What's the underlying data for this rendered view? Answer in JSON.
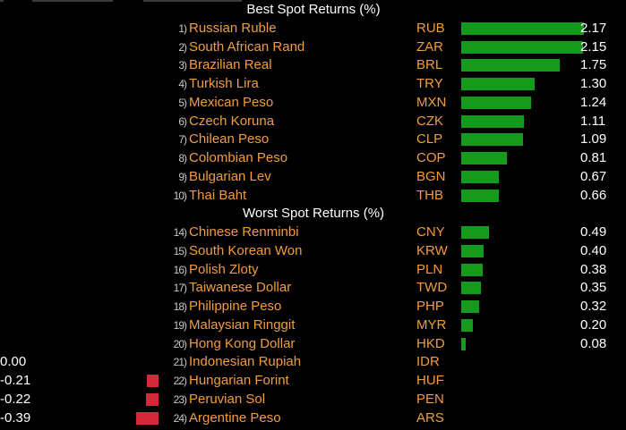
{
  "colors": {
    "background": "#000000",
    "name_text": "#f39c3c",
    "value_text": "#ffffff",
    "positive_bar": "#159a1c",
    "negative_bar": "#d4283b"
  },
  "chart_data": {
    "type": "bar",
    "orientation": "horizontal",
    "sections": [
      {
        "title": "Best Spot Returns (%)",
        "rows": [
          {
            "rank": "1)",
            "name": "Russian Ruble",
            "code": "RUB",
            "value": 2.17,
            "label": "2.17"
          },
          {
            "rank": "2)",
            "name": "South African Rand",
            "code": "ZAR",
            "value": 2.15,
            "label": "2.15"
          },
          {
            "rank": "3)",
            "name": "Brazilian Real",
            "code": "BRL",
            "value": 1.75,
            "label": "1.75"
          },
          {
            "rank": "4)",
            "name": "Turkish Lira",
            "code": "TRY",
            "value": 1.3,
            "label": "1.30"
          },
          {
            "rank": "5)",
            "name": "Mexican Peso",
            "code": "MXN",
            "value": 1.24,
            "label": "1.24"
          },
          {
            "rank": "6)",
            "name": "Czech Koruna",
            "code": "CZK",
            "value": 1.11,
            "label": "1.11"
          },
          {
            "rank": "7)",
            "name": "Chilean Peso",
            "code": "CLP",
            "value": 1.09,
            "label": "1.09"
          },
          {
            "rank": "8)",
            "name": "Colombian Peso",
            "code": "COP",
            "value": 0.81,
            "label": "0.81"
          },
          {
            "rank": "9)",
            "name": "Bulgarian Lev",
            "code": "BGN",
            "value": 0.67,
            "label": "0.67"
          },
          {
            "rank": "10)",
            "name": "Thai Baht",
            "code": "THB",
            "value": 0.66,
            "label": "0.66"
          }
        ]
      },
      {
        "title": "Worst Spot Returns (%)",
        "rows": [
          {
            "rank": "14)",
            "name": "Chinese Renminbi",
            "code": "CNY",
            "value": 0.49,
            "label": "0.49"
          },
          {
            "rank": "15)",
            "name": "South Korean Won",
            "code": "KRW",
            "value": 0.4,
            "label": "0.40"
          },
          {
            "rank": "16)",
            "name": "Polish Zloty",
            "code": "PLN",
            "value": 0.38,
            "label": "0.38"
          },
          {
            "rank": "17)",
            "name": "Taiwanese Dollar",
            "code": "TWD",
            "value": 0.35,
            "label": "0.35"
          },
          {
            "rank": "18)",
            "name": "Philippine Peso",
            "code": "PHP",
            "value": 0.32,
            "label": "0.32"
          },
          {
            "rank": "19)",
            "name": "Malaysian Ringgit",
            "code": "MYR",
            "value": 0.2,
            "label": "0.20"
          },
          {
            "rank": "20)",
            "name": "Hong Kong Dollar",
            "code": "HKD",
            "value": 0.08,
            "label": "0.08"
          },
          {
            "rank": "21)",
            "name": "Indonesian Rupiah",
            "code": "IDR",
            "value": 0.0,
            "label": "0.00"
          },
          {
            "rank": "22)",
            "name": "Hungarian Forint",
            "code": "HUF",
            "value": -0.21,
            "label": "-0.21"
          },
          {
            "rank": "23)",
            "name": "Peruvian Sol",
            "code": "PEN",
            "value": -0.22,
            "label": "-0.22"
          },
          {
            "rank": "24)",
            "name": "Argentine Peso",
            "code": "ARS",
            "value": -0.39,
            "label": "-0.39"
          }
        ]
      }
    ]
  }
}
